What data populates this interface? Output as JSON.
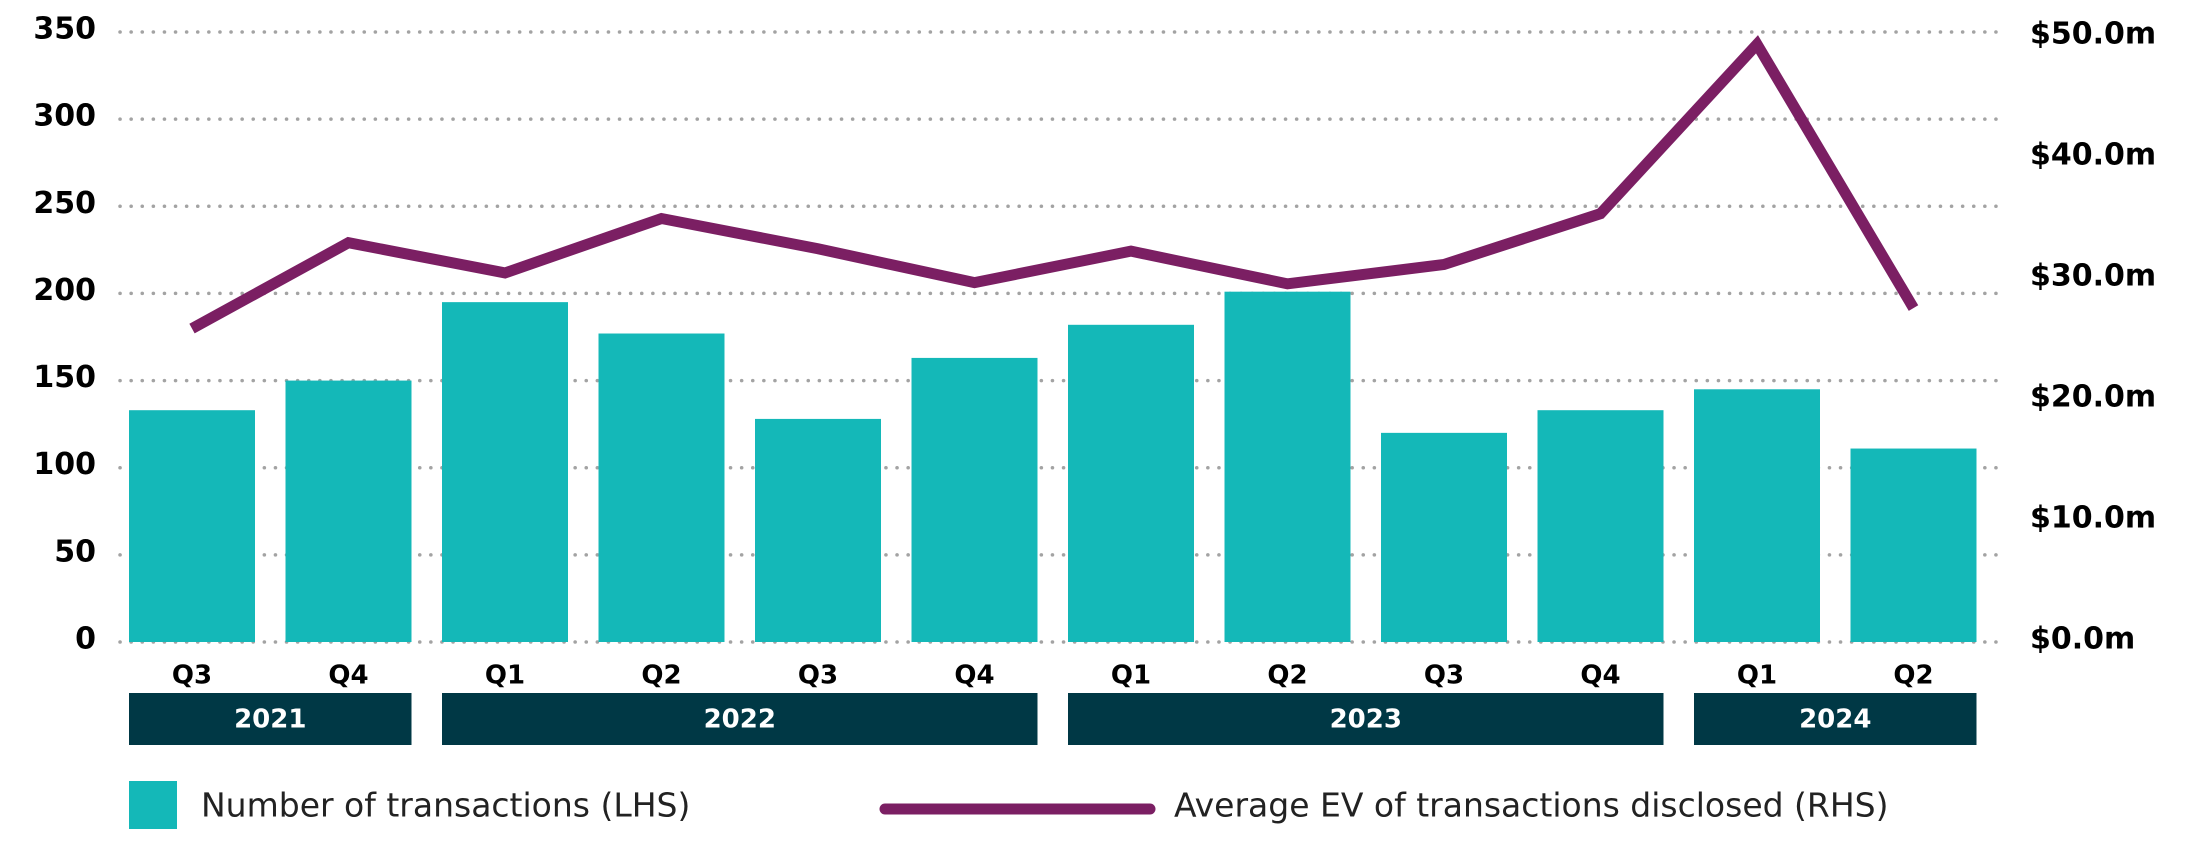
{
  "chart_data": {
    "type": "bar",
    "categories": [
      "Q3",
      "Q4",
      "Q1",
      "Q2",
      "Q3",
      "Q4",
      "Q1",
      "Q2",
      "Q3",
      "Q4",
      "Q1",
      "Q2"
    ],
    "year_groups": [
      {
        "label": "2021",
        "quarters": 2
      },
      {
        "label": "2022",
        "quarters": 4
      },
      {
        "label": "2023",
        "quarters": 4
      },
      {
        "label": "2024",
        "quarters": 2
      }
    ],
    "series": [
      {
        "name": "Number of transactions (LHS)",
        "type": "bar",
        "axis": "left",
        "color": "#14b8b8",
        "values": [
          133,
          150,
          195,
          177,
          128,
          163,
          182,
          201,
          120,
          133,
          145,
          111
        ]
      },
      {
        "name": "Average EV of transactions disclosed (RHS)",
        "type": "line",
        "axis": "right",
        "color": "#7b1f63",
        "values": [
          25.9,
          33.0,
          30.5,
          35.0,
          32.5,
          29.7,
          32.3,
          29.6,
          31.2,
          35.4,
          49.4,
          27.6
        ]
      }
    ],
    "y_left": {
      "range": [
        0,
        350
      ],
      "ticks": [
        "0",
        "50",
        "100",
        "150",
        "200",
        "250",
        "300",
        "350"
      ]
    },
    "y_right": {
      "range": [
        0,
        50
      ],
      "ticks": [
        "$0.0m",
        "$10.0m",
        "$20.0m",
        "$30.0m",
        "$40.0m",
        "$50.0m"
      ]
    },
    "grid": "horizontal-dotted",
    "legend_position": "bottom",
    "colors": {
      "bar": "#14b8b8",
      "line": "#7b1f63",
      "year_band": "#003845",
      "grid": "#a3a3a3"
    }
  }
}
